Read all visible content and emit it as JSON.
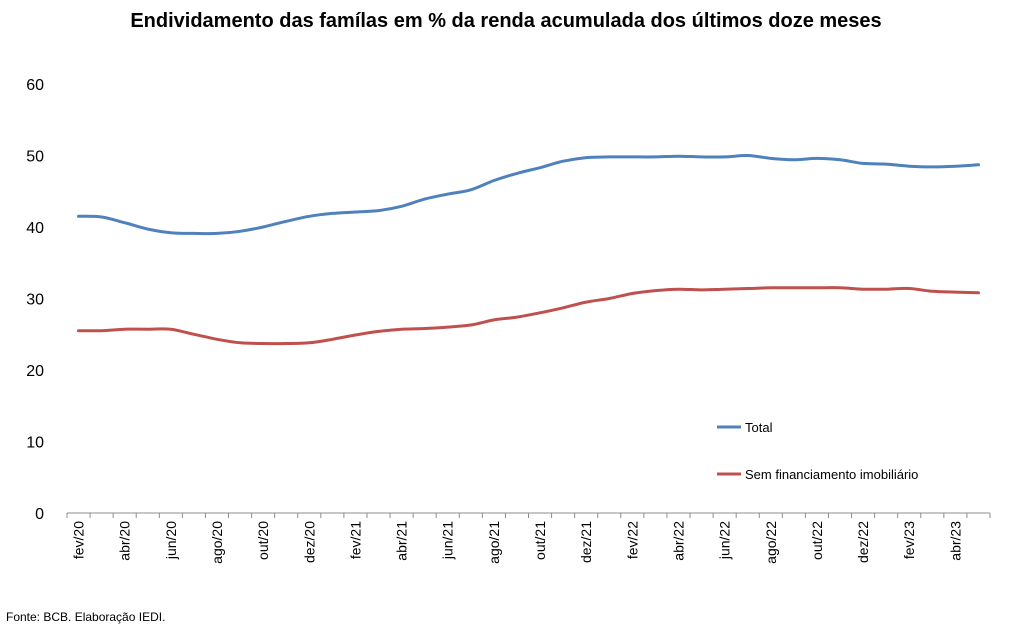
{
  "chart_data": {
    "type": "line",
    "title": "Endividamento das famílas em % da renda acumulada dos últimos doze meses",
    "xlabel": "",
    "ylabel": "",
    "ylim": [
      0,
      60
    ],
    "yticks": [
      0,
      10,
      20,
      30,
      40,
      50,
      60
    ],
    "grid": false,
    "legend_position": "right",
    "x": [
      "fev/20",
      "mar/20",
      "abr/20",
      "mai/20",
      "jun/20",
      "jul/20",
      "ago/20",
      "set/20",
      "out/20",
      "nov/20",
      "dez/20",
      "jan/21",
      "fev/21",
      "mar/21",
      "abr/21",
      "mai/21",
      "jun/21",
      "jul/21",
      "ago/21",
      "set/21",
      "out/21",
      "nov/21",
      "dez/21",
      "jan/22",
      "fev/22",
      "mar/22",
      "abr/22",
      "mai/22",
      "jun/22",
      "jul/22",
      "ago/22",
      "set/22",
      "out/22",
      "nov/22",
      "dez/22",
      "jan/23",
      "fev/23",
      "mar/23",
      "abr/23",
      "mai/23"
    ],
    "xtick_labels": [
      "fev/20",
      "abr/20",
      "jun/20",
      "ago/20",
      "out/20",
      "dez/20",
      "fev/21",
      "abr/21",
      "jun/21",
      "ago/21",
      "out/21",
      "dez/21",
      "fev/22",
      "abr/22",
      "jun/22",
      "ago/22",
      "out/22",
      "dez/22",
      "fev/23",
      "abr/23"
    ],
    "series": [
      {
        "name": "Total",
        "color": "#4F81BD",
        "values": [
          41.5,
          41.4,
          40.6,
          39.7,
          39.2,
          39.1,
          39.1,
          39.4,
          40.0,
          40.8,
          41.5,
          41.9,
          42.1,
          42.3,
          42.9,
          43.9,
          44.6,
          45.2,
          46.5,
          47.5,
          48.3,
          49.2,
          49.7,
          49.8,
          49.8,
          49.8,
          49.9,
          49.8,
          49.8,
          50.0,
          49.6,
          49.4,
          49.6,
          49.4,
          48.9,
          48.8,
          48.5,
          48.4,
          48.5,
          48.7
        ]
      },
      {
        "name": "Sem financiamento imobiliário",
        "color": "#C0504D",
        "values": [
          25.5,
          25.5,
          25.7,
          25.7,
          25.7,
          25.0,
          24.3,
          23.8,
          23.7,
          23.7,
          23.8,
          24.3,
          24.9,
          25.4,
          25.7,
          25.8,
          26.0,
          26.3,
          27.0,
          27.4,
          28.0,
          28.7,
          29.5,
          30.0,
          30.7,
          31.1,
          31.3,
          31.2,
          31.3,
          31.4,
          31.5,
          31.5,
          31.5,
          31.5,
          31.3,
          31.3,
          31.4,
          31.0,
          30.9,
          30.8
        ]
      }
    ]
  },
  "source_note": "Fonte: BCB. Elaboração IEDI."
}
